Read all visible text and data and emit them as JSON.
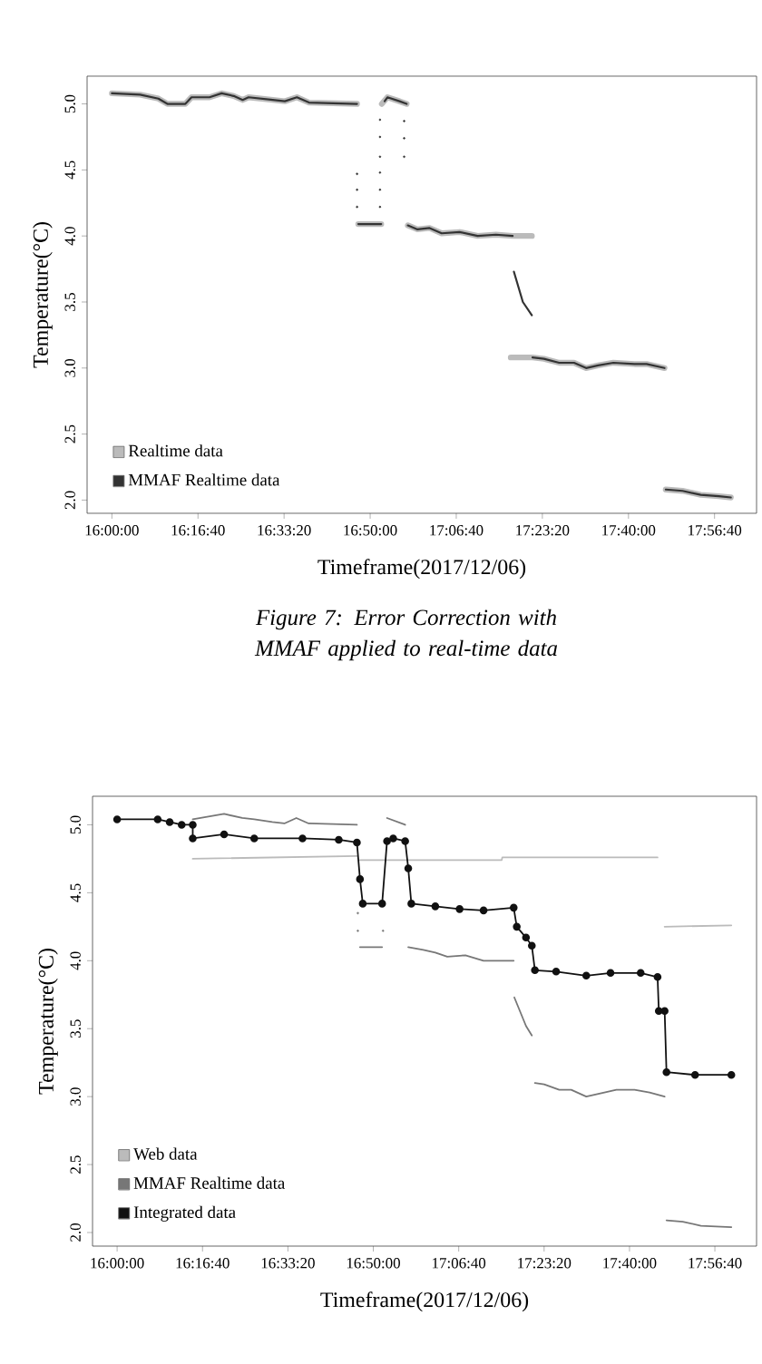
{
  "chart_data": [
    {
      "type": "line",
      "xlabel": "Timeframe(2017/12/06)",
      "ylabel": "Temperature(°C)",
      "annotations": [
        "*Figure 7: Error Correction with MMAF applied to real-time data*"
      ],
      "xlim": [
        15.92,
        18.08
      ],
      "ylim": [
        1.9,
        5.21
      ],
      "xticks": [
        {
          "value": 16,
          "label": "16:00:00"
        },
        {
          "value": 16.2778,
          "label": "16:16:40"
        },
        {
          "value": 16.5556,
          "label": "16:33:20"
        },
        {
          "value": 16.8333,
          "label": "16:50:00"
        },
        {
          "value": 17.1111,
          "label": "17:06:40"
        },
        {
          "value": 17.3889,
          "label": "17:23:20"
        },
        {
          "value": 17.6667,
          "label": "17:40:00"
        },
        {
          "value": 17.9444,
          "label": "17:56:40"
        }
      ],
      "yticks": [
        {
          "value": 2,
          "label": "2.0"
        },
        {
          "value": 2.5,
          "label": "2.5"
        },
        {
          "value": 3,
          "label": "3.0"
        },
        {
          "value": 3.5,
          "label": "3.5"
        },
        {
          "value": 4,
          "label": "4.0"
        },
        {
          "value": 4.5,
          "label": "4.5"
        },
        {
          "value": 5,
          "label": "5.0"
        }
      ],
      "legend": "bottom left",
      "series": [
        {
          "name": "Realtime data",
          "color": "#bbbbbb",
          "x": [
            16.0,
            16.091,
            16.15,
            16.179,
            16.237,
            16.257,
            16.315,
            16.354,
            16.393,
            16.422,
            16.441,
            16.519,
            16.558,
            16.597,
            16.636,
            16.791
          ],
          "values": [
            5.08,
            5.07,
            5.04,
            5.0,
            5.0,
            5.05,
            5.05,
            5.08,
            5.06,
            5.03,
            5.05,
            5.03,
            5.02,
            5.05,
            5.01,
            5.0
          ]
        },
        {
          "color": "#bbbbbb",
          "x": [
            16.795,
            16.869
          ],
          "values": [
            4.09,
            4.09
          ]
        },
        {
          "color": "#bbbbbb",
          "x": [
            16.871,
            16.889,
            16.928,
            16.951
          ],
          "values": [
            5.0,
            5.05,
            5.02,
            5.0
          ]
        },
        {
          "color": "#bbbbbb",
          "x": [
            16.955,
            16.986,
            17.025,
            17.064,
            17.122,
            17.18,
            17.239,
            17.293,
            17.355
          ],
          "values": [
            4.08,
            4.05,
            4.06,
            4.02,
            4.03,
            4.0,
            4.01,
            4.0,
            4.0
          ]
        },
        {
          "color": "#bbbbbb",
          "x": [
            17.287,
            17.332,
            17.357,
            17.394,
            17.443,
            17.491,
            17.53,
            17.569,
            17.618,
            17.686,
            17.725,
            17.783
          ],
          "values": [
            3.08,
            3.08,
            3.08,
            3.07,
            3.04,
            3.04,
            3.0,
            3.02,
            3.04,
            3.03,
            3.03,
            3.0
          ]
        },
        {
          "color": "#bbbbbb",
          "x": [
            17.787,
            17.841,
            17.9,
            17.958,
            17.997
          ],
          "values": [
            2.08,
            2.07,
            2.04,
            2.03,
            2.02
          ]
        },
        {
          "name": "MMAF Realtime data",
          "color": "#333333",
          "x": [
            16.0,
            16.091,
            16.15,
            16.179,
            16.237,
            16.257,
            16.315,
            16.354,
            16.393,
            16.422,
            16.441,
            16.519,
            16.558,
            16.597,
            16.636,
            16.791
          ],
          "values": [
            5.08,
            5.07,
            5.04,
            5.0,
            5.0,
            5.05,
            5.05,
            5.08,
            5.06,
            5.03,
            5.05,
            5.03,
            5.02,
            5.05,
            5.01,
            5.0
          ]
        },
        {
          "color": "#333333",
          "x": [
            16.795,
            16.869
          ],
          "values": [
            4.09,
            4.09
          ]
        },
        {
          "color": "#333333",
          "x": [
            16.88,
            16.889,
            16.928,
            16.951
          ],
          "values": [
            5.02,
            5.05,
            5.02,
            5.0
          ]
        },
        {
          "color": "#333333",
          "x": [
            16.955,
            16.986,
            17.025,
            17.064,
            17.122,
            17.18,
            17.239,
            17.293
          ],
          "values": [
            4.08,
            4.05,
            4.06,
            4.02,
            4.03,
            4.0,
            4.01,
            4.0
          ]
        },
        {
          "color": "#333333",
          "x": [
            17.297,
            17.326,
            17.355
          ],
          "values": [
            3.73,
            3.5,
            3.4
          ]
        },
        {
          "color": "#333333",
          "x": [
            17.357,
            17.394,
            17.443,
            17.491,
            17.53,
            17.569,
            17.618,
            17.686,
            17.725,
            17.783
          ],
          "values": [
            3.08,
            3.07,
            3.04,
            3.04,
            3.0,
            3.02,
            3.04,
            3.03,
            3.03,
            3.0
          ]
        },
        {
          "color": "#333333",
          "x": [
            17.787,
            17.841,
            17.9,
            17.958,
            17.997
          ],
          "values": [
            2.08,
            2.07,
            2.04,
            2.03,
            2.02
          ]
        },
        {
          "type": "scatter",
          "marker": "circle",
          "color": "#333333",
          "x": [
            16.791,
            16.791,
            16.791,
            16.865,
            16.865,
            16.865,
            16.865,
            16.865,
            16.865,
            16.943,
            16.943,
            16.943
          ],
          "values": [
            4.22,
            4.35,
            4.47,
            4.22,
            4.35,
            4.48,
            4.6,
            4.75,
            4.88,
            4.6,
            4.74,
            4.87
          ]
        }
      ]
    },
    {
      "type": "line",
      "xlabel": "Timeframe(2017/12/06)",
      "ylabel": "Temperature(°C)",
      "xlim": [
        15.92,
        18.08
      ],
      "ylim": [
        1.9,
        5.21
      ],
      "xticks": [
        {
          "value": 16,
          "label": "16:00:00"
        },
        {
          "value": 16.2778,
          "label": "16:16:40"
        },
        {
          "value": 16.5556,
          "label": "16:33:20"
        },
        {
          "value": 16.8333,
          "label": "16:50:00"
        },
        {
          "value": 17.1111,
          "label": "17:06:40"
        },
        {
          "value": 17.3889,
          "label": "17:23:20"
        },
        {
          "value": 17.6667,
          "label": "17:40:00"
        },
        {
          "value": 17.9444,
          "label": "17:56:40"
        }
      ],
      "yticks": [
        {
          "value": 2,
          "label": "2.0"
        },
        {
          "value": 2.5,
          "label": "2.5"
        },
        {
          "value": 3,
          "label": "3.0"
        },
        {
          "value": 3.5,
          "label": "3.5"
        },
        {
          "value": 4,
          "label": "4.0"
        },
        {
          "value": 4.5,
          "label": "4.5"
        },
        {
          "value": 5,
          "label": "5.0"
        }
      ],
      "legend": "bottom left",
      "series": [
        {
          "name": "Web data",
          "color": "#bbbbbb",
          "x": [
            16.246,
            16.78
          ],
          "values": [
            4.75,
            4.77
          ]
        },
        {
          "color": "#bbbbbb",
          "x": [
            16.79,
            17.251,
            17.253,
            17.758
          ],
          "values": [
            4.74,
            4.74,
            4.76,
            4.76
          ]
        },
        {
          "color": "#bbbbbb",
          "x": [
            17.781,
            17.998
          ],
          "values": [
            4.25,
            4.26
          ]
        },
        {
          "name": "MMAF Realtime data",
          "color": "#777777",
          "x": [
            16.246,
            16.348,
            16.407,
            16.446,
            16.505,
            16.544,
            16.583,
            16.623,
            16.78
          ],
          "values": [
            5.04,
            5.08,
            5.05,
            5.04,
            5.02,
            5.01,
            5.05,
            5.01,
            5.0
          ]
        },
        {
          "color": "#777777",
          "x": [
            16.79,
            16.862
          ],
          "values": [
            4.1,
            4.1
          ]
        },
        {
          "color": "#777777",
          "x": [
            16.878,
            16.937
          ],
          "values": [
            5.05,
            5.0
          ]
        },
        {
          "color": "#777777",
          "x": [
            16.947,
            16.996,
            17.035,
            17.074,
            17.133,
            17.192,
            17.29
          ],
          "values": [
            4.1,
            4.08,
            4.06,
            4.03,
            4.04,
            4.0,
            4.0
          ]
        },
        {
          "color": "#777777",
          "x": [
            17.292,
            17.33,
            17.349
          ],
          "values": [
            3.73,
            3.52,
            3.45
          ]
        },
        {
          "color": "#777777",
          "x": [
            17.359,
            17.389,
            17.438,
            17.477,
            17.526,
            17.585,
            17.624,
            17.683,
            17.732,
            17.781
          ],
          "values": [
            3.1,
            3.09,
            3.05,
            3.05,
            3.0,
            3.03,
            3.05,
            3.05,
            3.03,
            3.0
          ]
        },
        {
          "color": "#777777",
          "x": [
            17.787,
            17.84,
            17.899,
            17.998
          ],
          "values": [
            2.09,
            2.08,
            2.05,
            2.04
          ]
        },
        {
          "name": "Integrated data",
          "color": "#111111",
          "marker": "circle",
          "x": [
            16.0,
            16.132,
            16.171,
            16.21,
            16.246,
            16.246,
            16.348,
            16.446,
            16.603,
            16.721,
            16.78,
            16.79,
            16.799,
            16.862,
            16.878,
            16.898,
            16.937,
            16.947,
            16.957,
            17.035,
            17.114,
            17.192,
            17.29,
            17.3,
            17.33,
            17.349,
            17.359,
            17.428,
            17.526,
            17.605,
            17.703,
            17.758,
            17.762,
            17.781,
            17.787,
            17.88,
            17.998
          ],
          "values": [
            5.04,
            5.04,
            5.02,
            5.0,
            5.0,
            4.9,
            4.93,
            4.9,
            4.9,
            4.89,
            4.87,
            4.6,
            4.42,
            4.42,
            4.88,
            4.9,
            4.88,
            4.68,
            4.42,
            4.4,
            4.38,
            4.37,
            4.39,
            4.25,
            4.17,
            4.11,
            3.93,
            3.92,
            3.89,
            3.91,
            3.91,
            3.88,
            3.63,
            3.63,
            3.18,
            3.16,
            3.16
          ]
        },
        {
          "type": "scatter",
          "marker": "circle",
          "color": "#777777",
          "x": [
            16.783,
            16.783,
            16.865
          ],
          "values": [
            4.35,
            4.22,
            4.22
          ]
        }
      ]
    }
  ]
}
